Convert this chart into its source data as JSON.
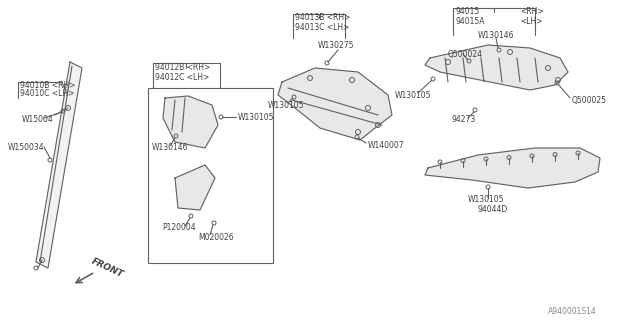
{
  "bg_color": "#ffffff",
  "line_color": "#606060",
  "text_color": "#404040",
  "gray_fill": "#e8e8e8",
  "ref_code": "A940001S14",
  "labels": {
    "part1_a": "94010B <RH>",
    "part1_b": "94010C <LH>",
    "part1_w1": "W15004",
    "part1_w2": "W150034",
    "part2_a": "94012B <RH>",
    "part2_b": "94012C <LH>",
    "part2_w1": "W130146",
    "part2_w2": "W130105",
    "part2_b1": "P120004",
    "part2_b2": "M020026",
    "part3_a": "94013B <RH>",
    "part3_b": "94013C <LH>",
    "part3_w1": "W130275",
    "part3_w2": "W130105",
    "part3_w3": "W140007",
    "part4_a": "94015",
    "part4_rh": "<RH>",
    "part4_b": "94015A",
    "part4_lh": "<LH>",
    "part4_w1": "W130105",
    "part4_w2": "W130146",
    "part4_q1": "Q500024",
    "part4_q2": "Q500025",
    "part4_p": "94273",
    "part5_w": "W130105",
    "part5_p": "94044D",
    "front_label": "FRONT"
  }
}
